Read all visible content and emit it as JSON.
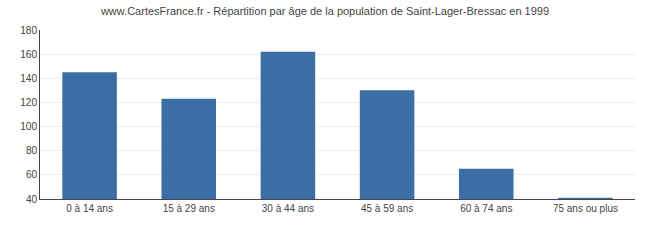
{
  "chart_data": {
    "type": "bar",
    "title": "www.CartesFrance.fr - Répartition par âge de la population de Saint-Lager-Bressac en 1999",
    "categories": [
      "0 à 14 ans",
      "15 à 29 ans",
      "30 à 44 ans",
      "45 à 59 ans",
      "60 à 74 ans",
      "75 ans ou plus"
    ],
    "values": [
      145,
      123,
      162,
      130,
      65,
      41
    ],
    "color": "#3a6ea5",
    "ylim": [
      40,
      180
    ],
    "yticks": [
      40,
      60,
      80,
      100,
      120,
      140,
      160,
      180
    ],
    "grid": true
  }
}
